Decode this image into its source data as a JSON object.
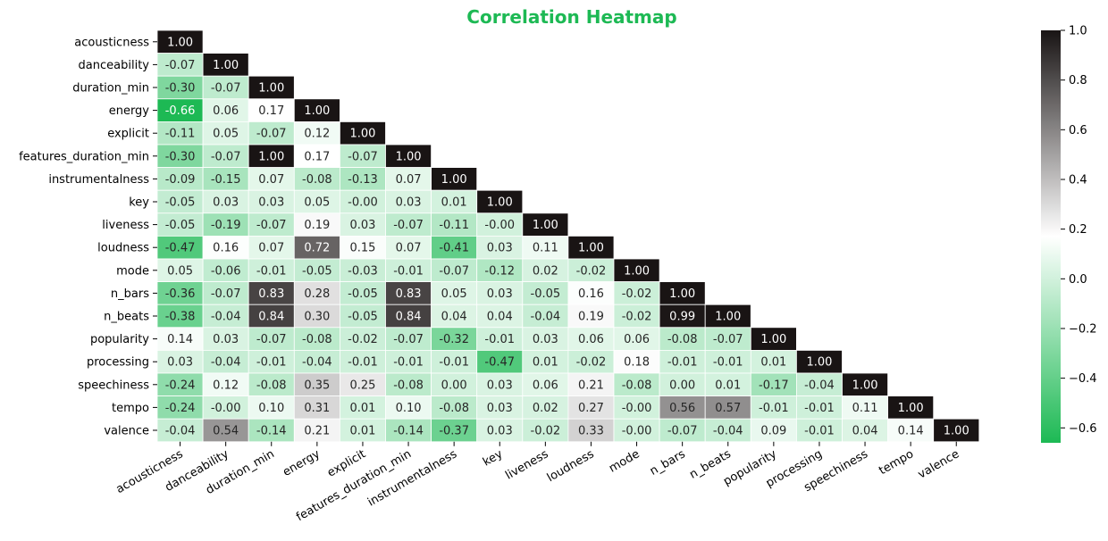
{
  "chart_data": {
    "type": "heatmap",
    "title": "Correlation Heatmap",
    "variables": [
      "acousticness",
      "danceability",
      "duration_min",
      "energy",
      "explicit",
      "features_duration_min",
      "instrumentalness",
      "key",
      "liveness",
      "loudness",
      "mode",
      "n_bars",
      "n_beats",
      "popularity",
      "processing",
      "speechiness",
      "tempo",
      "valence"
    ],
    "mask": "upper-triangle",
    "matrix": [
      [
        1.0
      ],
      [
        -0.07,
        1.0
      ],
      [
        -0.3,
        -0.07,
        1.0
      ],
      [
        -0.66,
        0.06,
        0.17,
        1.0
      ],
      [
        -0.11,
        0.05,
        -0.07,
        0.12,
        1.0
      ],
      [
        -0.3,
        -0.07,
        1.0,
        0.17,
        -0.07,
        1.0
      ],
      [
        -0.09,
        -0.15,
        0.07,
        -0.08,
        -0.13,
        0.07,
        1.0
      ],
      [
        -0.05,
        0.03,
        0.03,
        0.05,
        -0.0,
        0.03,
        0.01,
        1.0
      ],
      [
        -0.05,
        -0.19,
        -0.07,
        0.19,
        0.03,
        -0.07,
        -0.11,
        -0.0,
        1.0
      ],
      [
        -0.47,
        0.16,
        0.07,
        0.72,
        0.15,
        0.07,
        -0.41,
        0.03,
        0.11,
        1.0
      ],
      [
        0.05,
        -0.06,
        -0.01,
        -0.05,
        -0.03,
        -0.01,
        -0.07,
        -0.12,
        0.02,
        -0.02,
        1.0
      ],
      [
        -0.36,
        -0.07,
        0.83,
        0.28,
        -0.05,
        0.83,
        0.05,
        0.03,
        -0.05,
        0.16,
        -0.02,
        1.0
      ],
      [
        -0.38,
        -0.04,
        0.84,
        0.3,
        -0.05,
        0.84,
        0.04,
        0.04,
        -0.04,
        0.19,
        -0.02,
        0.99,
        1.0
      ],
      [
        0.14,
        0.03,
        -0.07,
        -0.08,
        -0.02,
        -0.07,
        -0.32,
        -0.01,
        0.03,
        0.06,
        0.06,
        -0.08,
        -0.07,
        1.0
      ],
      [
        0.03,
        -0.04,
        -0.01,
        -0.04,
        -0.01,
        -0.01,
        -0.01,
        -0.47,
        0.01,
        -0.02,
        0.18,
        -0.01,
        -0.01,
        0.01,
        1.0
      ],
      [
        -0.24,
        0.12,
        -0.08,
        0.35,
        0.25,
        -0.08,
        0.0,
        0.03,
        0.06,
        0.21,
        -0.08,
        0.0,
        0.01,
        -0.17,
        -0.04,
        1.0
      ],
      [
        -0.24,
        -0.0,
        0.1,
        0.31,
        0.01,
        0.1,
        -0.08,
        0.03,
        0.02,
        0.27,
        -0.0,
        0.56,
        0.57,
        -0.01,
        -0.01,
        0.11,
        1.0
      ],
      [
        -0.04,
        0.54,
        -0.14,
        0.21,
        0.01,
        -0.14,
        -0.37,
        0.03,
        -0.02,
        0.33,
        -0.0,
        -0.07,
        -0.04,
        0.09,
        -0.01,
        0.04,
        0.14,
        1.0
      ]
    ],
    "colorbar": {
      "range": [
        -0.66,
        1.0
      ],
      "ticks": [
        "1.0",
        "0.8",
        "0.6",
        "0.4",
        "0.2",
        "0.0",
        "−0.2",
        "−0.4",
        "−0.6"
      ]
    },
    "colors": {
      "title": "#1db954",
      "low": "#1db954",
      "mid": "#ffffff",
      "high": "#191414",
      "text_light": "#ffffff",
      "text_dark": "#262626"
    }
  }
}
